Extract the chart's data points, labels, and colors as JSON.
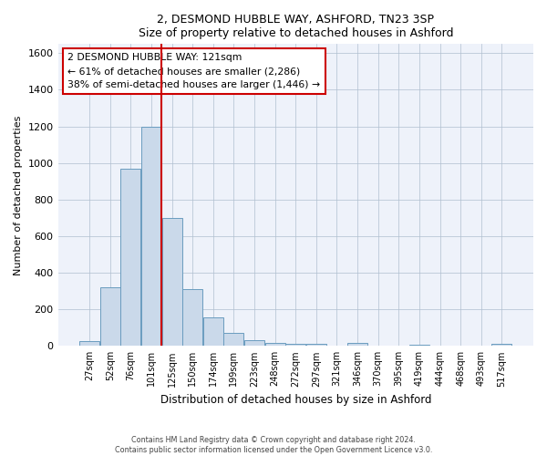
{
  "title1": "2, DESMOND HUBBLE WAY, ASHFORD, TN23 3SP",
  "title2": "Size of property relative to detached houses in Ashford",
  "xlabel": "Distribution of detached houses by size in Ashford",
  "ylabel": "Number of detached properties",
  "categories": [
    "27sqm",
    "52sqm",
    "76sqm",
    "101sqm",
    "125sqm",
    "150sqm",
    "174sqm",
    "199sqm",
    "223sqm",
    "248sqm",
    "272sqm",
    "297sqm",
    "321sqm",
    "346sqm",
    "370sqm",
    "395sqm",
    "419sqm",
    "444sqm",
    "468sqm",
    "493sqm",
    "517sqm"
  ],
  "values": [
    25,
    320,
    970,
    1200,
    700,
    310,
    155,
    70,
    30,
    15,
    10,
    10,
    0,
    15,
    0,
    0,
    5,
    0,
    0,
    0,
    10
  ],
  "bar_color": "#cad9ea",
  "bar_edge_color": "#6a9cbf",
  "vline_color": "#cc0000",
  "vline_index": 3,
  "annotation_text": "2 DESMOND HUBBLE WAY: 121sqm\n← 61% of detached houses are smaller (2,286)\n38% of semi-detached houses are larger (1,446) →",
  "annotation_box_color": "#ffffff",
  "annotation_box_edge": "#cc0000",
  "background_color": "#eef2fa",
  "ylim": [
    0,
    1650
  ],
  "yticks": [
    0,
    200,
    400,
    600,
    800,
    1000,
    1200,
    1400,
    1600
  ],
  "footer1": "Contains HM Land Registry data © Crown copyright and database right 2024.",
  "footer2": "Contains public sector information licensed under the Open Government Licence v3.0."
}
